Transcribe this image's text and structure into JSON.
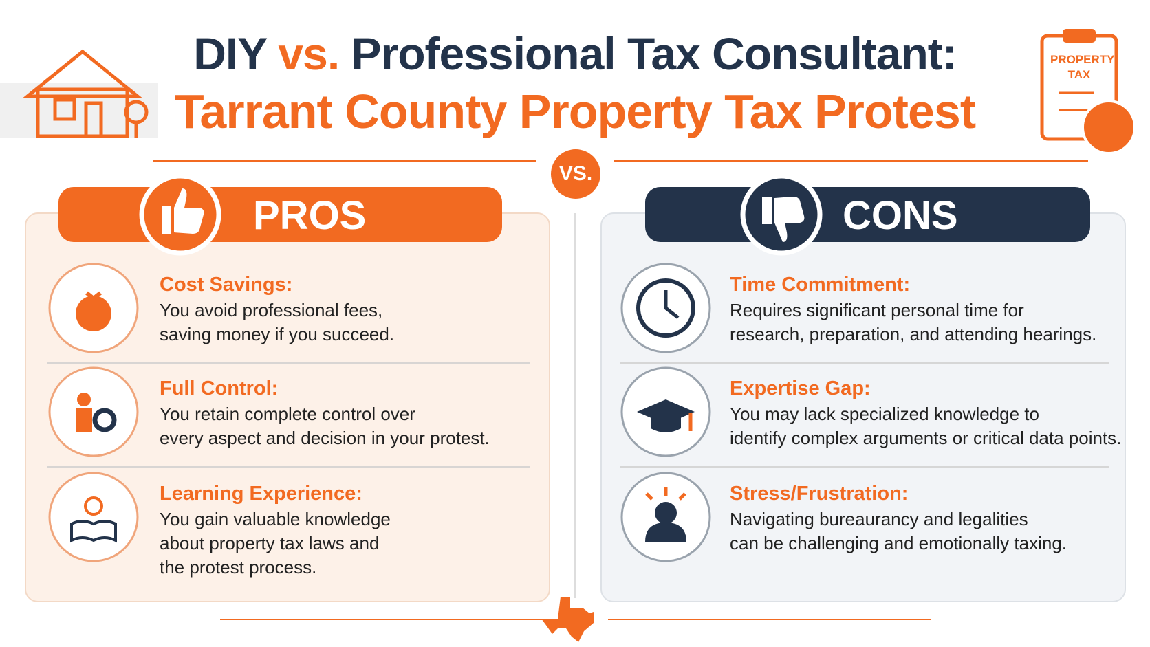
{
  "header": {
    "title_start": "DIY",
    "title_vs": "vs.",
    "title_end": "Professional Tax Consultant:",
    "subtitle": "Tarrant County Property Tax Protest",
    "clipboard": [
      "PROPERTY",
      "TAX"
    ]
  },
  "vs_badge": "VS.",
  "pros": {
    "heading": "PROS",
    "items": [
      {
        "title": "Cost Savings:",
        "lines": [
          "You avoid professional fees,",
          "saving money if you succeed."
        ]
      },
      {
        "title": "Full Control:",
        "lines": [
          "You retain complete control over",
          "every aspect and decision in your protest."
        ]
      },
      {
        "title": "Learning Experience:",
        "lines": [
          "You gain valuable knowledge",
          "about property tax laws and",
          "the protest process."
        ]
      }
    ]
  },
  "cons": {
    "heading": "CONS",
    "items": [
      {
        "title": "Time Commitment:",
        "lines": [
          "Requires significant personal time for",
          "research, preparation, and attending hearings."
        ]
      },
      {
        "title": "Expertise Gap:",
        "lines": [
          "You may lack specialized knowledge to",
          "identify complex arguments or critical data points."
        ]
      },
      {
        "title": "Stress/Frustration:",
        "lines": [
          "Navigating bureaurancy and legalities",
          "can be challenging and emotionally taxing."
        ]
      }
    ]
  }
}
